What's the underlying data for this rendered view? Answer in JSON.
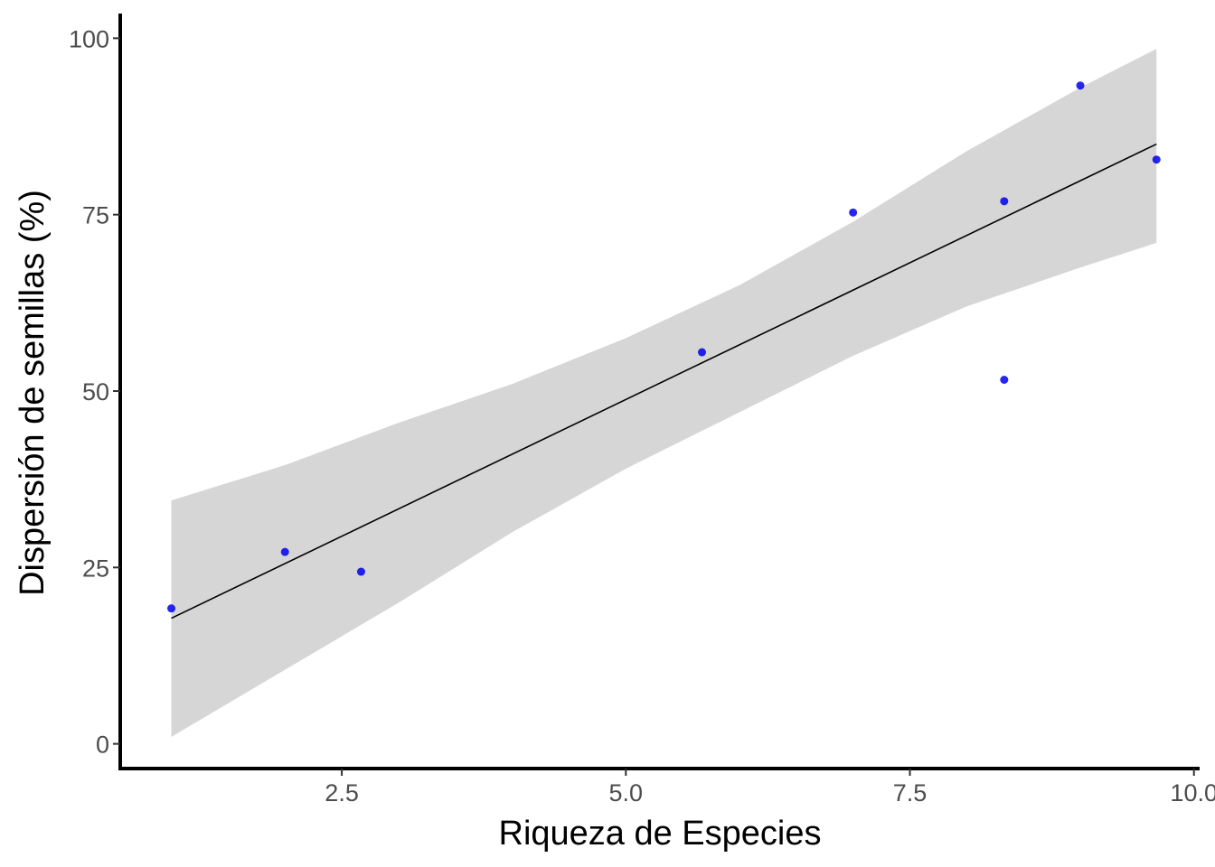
{
  "chart_data": {
    "type": "scatter",
    "title": "",
    "xlabel": "Riqueza de Especies",
    "ylabel": "Dispersión de semillas (%)",
    "xlim": [
      0.55,
      10.05
    ],
    "ylim": [
      -3.5,
      103.5
    ],
    "x_ticks": [
      2.5,
      5.0,
      7.5,
      10.0
    ],
    "x_tick_labels": [
      "2.5",
      "5.0",
      "7.5",
      "10.0"
    ],
    "y_ticks": [
      0,
      25,
      50,
      75,
      100
    ],
    "y_tick_labels": [
      "0",
      "25",
      "50",
      "75",
      "100"
    ],
    "grid": false,
    "legend": "none",
    "series": [
      {
        "kind": "points",
        "color": "#0000ee",
        "x": [
          1.0,
          2.0,
          2.67,
          5.67,
          7.0,
          8.33,
          8.33,
          9.0,
          9.67
        ],
        "y": [
          19.2,
          27.2,
          24.4,
          55.5,
          75.3,
          76.9,
          51.6,
          93.3,
          82.8
        ]
      },
      {
        "kind": "regression-line",
        "color": "#000000",
        "x": [
          1.0,
          9.67
        ],
        "y": [
          17.8,
          85.0
        ]
      },
      {
        "kind": "confidence-band",
        "color": "#d6d6d6",
        "x": [
          1.0,
          2.0,
          3.0,
          4.0,
          5.0,
          6.0,
          7.0,
          8.0,
          9.0,
          9.67
        ],
        "lower": [
          1.0,
          10.5,
          20.0,
          30.0,
          39.0,
          47.0,
          55.0,
          62.0,
          67.5,
          71.0
        ],
        "upper": [
          34.5,
          39.5,
          45.5,
          51.0,
          57.5,
          65.0,
          74.0,
          84.0,
          93.0,
          98.5
        ]
      }
    ]
  }
}
